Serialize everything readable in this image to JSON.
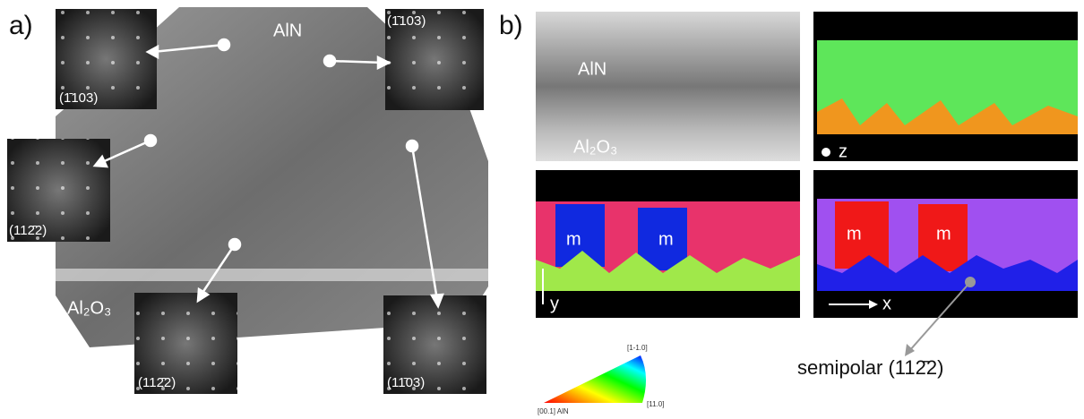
{
  "panel_a": {
    "label": "a)",
    "layer_top": "AlN",
    "substrate": "Al₂O₃",
    "fft_patterns": [
      "(1̄103)",
      "(1̄103)",
      "(112̄2)",
      "(112̄2)",
      "(11̄03)"
    ]
  },
  "panel_b": {
    "label": "b)",
    "maps": [
      {
        "layer": "AlN",
        "substrate": "Al₂O₃"
      },
      {
        "axis": "z"
      },
      {
        "domains": [
          "m",
          "m"
        ],
        "axis": "y"
      },
      {
        "domains": [
          "m",
          "m"
        ],
        "axis": "x"
      }
    ],
    "annotation": "semipolar (112̄2)",
    "color_key": {
      "top": "[1-1.0]",
      "left": "[00.1] AlN",
      "right": "[11.0]"
    }
  }
}
